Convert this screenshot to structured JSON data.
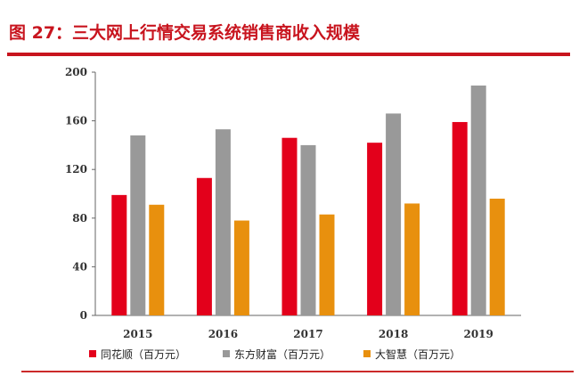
{
  "header": {
    "title": "图 27：三大网上行情交易系统销售商收入规模"
  },
  "chart_data": {
    "type": "bar",
    "categories": [
      "2015",
      "2016",
      "2017",
      "2018",
      "2019"
    ],
    "series": [
      {
        "name": "同花顺（百万元）",
        "color": "#e3001b",
        "values": [
          99,
          113,
          146,
          142,
          159
        ]
      },
      {
        "name": "东方财富（百万元）",
        "color": "#999999",
        "values": [
          148,
          153,
          140,
          166,
          189
        ]
      },
      {
        "name": "大智慧（百万元）",
        "color": "#e8900e",
        "values": [
          91,
          78,
          83,
          92,
          96
        ]
      }
    ],
    "yticks": [
      "0",
      "40",
      "80",
      "120",
      "160",
      "200"
    ],
    "ylim": [
      0,
      200
    ],
    "grid": false,
    "legend_position": "bottom"
  }
}
